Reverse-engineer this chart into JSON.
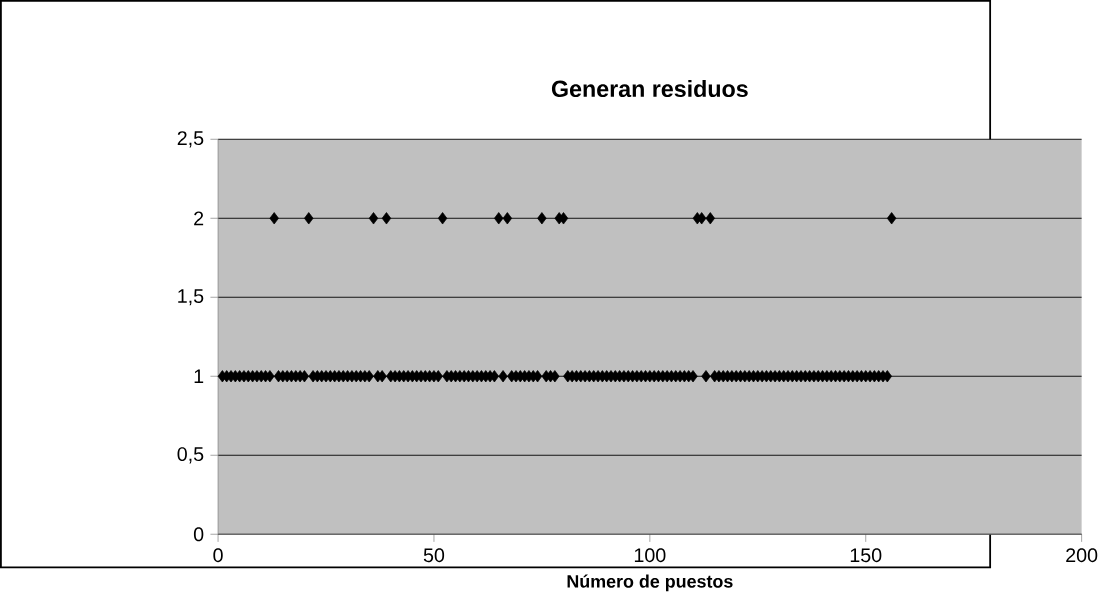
{
  "chart_data": {
    "type": "scatter",
    "title": "Generan residuos",
    "xlabel": "Número de puestos",
    "x": [
      1,
      2,
      3,
      4,
      5,
      6,
      7,
      8,
      9,
      10,
      11,
      12,
      13,
      14,
      15,
      16,
      17,
      18,
      19,
      20,
      21,
      22,
      23,
      24,
      25,
      26,
      27,
      28,
      29,
      30,
      31,
      32,
      33,
      34,
      35,
      36,
      37,
      38,
      39,
      40,
      41,
      42,
      43,
      44,
      45,
      46,
      47,
      48,
      49,
      50,
      51,
      52,
      53,
      54,
      55,
      56,
      57,
      58,
      59,
      60,
      61,
      62,
      63,
      64,
      65,
      66,
      67,
      68,
      69,
      70,
      71,
      72,
      73,
      74,
      75,
      76,
      77,
      78,
      79,
      80,
      81,
      82,
      83,
      84,
      85,
      86,
      87,
      88,
      89,
      90,
      91,
      92,
      93,
      94,
      95,
      96,
      97,
      98,
      99,
      100,
      101,
      102,
      103,
      104,
      105,
      106,
      107,
      108,
      109,
      110,
      111,
      112,
      113,
      114,
      115,
      116,
      117,
      118,
      119,
      120,
      121,
      122,
      123,
      124,
      125,
      126,
      127,
      128,
      129,
      130,
      131,
      132,
      133,
      134,
      135,
      136,
      137,
      138,
      139,
      140,
      141,
      142,
      143,
      144,
      145,
      146,
      147,
      148,
      149,
      150,
      151,
      152,
      153,
      154,
      155,
      156
    ],
    "values": [
      1,
      1,
      1,
      1,
      1,
      1,
      1,
      1,
      1,
      1,
      1,
      1,
      2,
      1,
      1,
      1,
      1,
      1,
      1,
      1,
      2,
      1,
      1,
      1,
      1,
      1,
      1,
      1,
      1,
      1,
      1,
      1,
      1,
      1,
      1,
      2,
      1,
      1,
      2,
      1,
      1,
      1,
      1,
      1,
      1,
      1,
      1,
      1,
      1,
      1,
      1,
      2,
      1,
      1,
      1,
      1,
      1,
      1,
      1,
      1,
      1,
      1,
      1,
      1,
      2,
      1,
      2,
      1,
      1,
      1,
      1,
      1,
      1,
      1,
      2,
      1,
      1,
      1,
      2,
      2,
      1,
      1,
      1,
      1,
      1,
      1,
      1,
      1,
      1,
      1,
      1,
      1,
      1,
      1,
      1,
      1,
      1,
      1,
      1,
      1,
      1,
      1,
      1,
      1,
      1,
      1,
      1,
      1,
      1,
      1,
      2,
      2,
      1,
      2,
      1,
      1,
      1,
      1,
      1,
      1,
      1,
      1,
      1,
      1,
      1,
      1,
      1,
      1,
      1,
      1,
      1,
      1,
      1,
      1,
      1,
      1,
      1,
      1,
      1,
      1,
      1,
      1,
      1,
      1,
      1,
      1,
      1,
      1,
      1,
      1,
      1,
      1,
      1,
      1,
      1,
      2
    ],
    "color": "#000000",
    "marker": "diamond",
    "grid": "y",
    "xlim": [
      0,
      200
    ],
    "xticks": [
      0,
      50,
      100,
      150,
      200
    ],
    "ylim": [
      0,
      2.5
    ],
    "yticks": [
      0,
      {
        "value": 0.5,
        "label": "0,5"
      },
      1,
      {
        "value": 1.5,
        "label": "1,5"
      },
      2,
      {
        "value": 2.5,
        "label": "2,5"
      }
    ]
  }
}
